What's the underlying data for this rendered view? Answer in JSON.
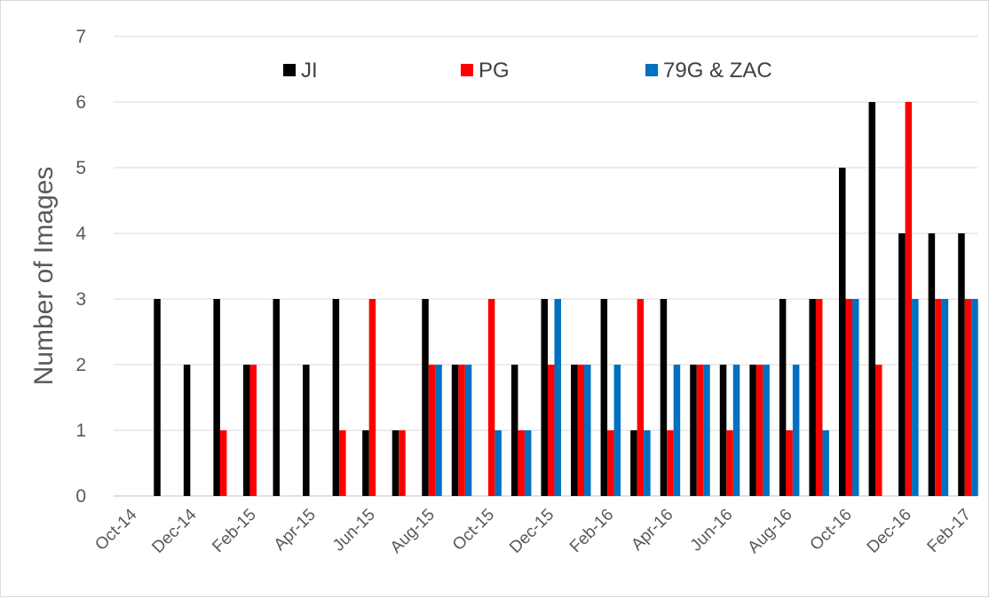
{
  "chart_data": {
    "type": "bar",
    "title": "",
    "xlabel": "",
    "ylabel": "Number of Images",
    "ylim": [
      0,
      7
    ],
    "yticks": [
      0,
      1,
      2,
      3,
      4,
      5,
      6,
      7
    ],
    "grid": true,
    "legend_position": "top",
    "categories": [
      "Oct-14",
      "Nov-14",
      "Dec-14",
      "Jan-15",
      "Feb-15",
      "Mar-15",
      "Apr-15",
      "May-15",
      "Jun-15",
      "Jul-15",
      "Aug-15",
      "Sep-15",
      "Oct-15",
      "Nov-15",
      "Dec-15",
      "Jan-16",
      "Feb-16",
      "Mar-16",
      "Apr-16",
      "May-16",
      "Jun-16",
      "Jul-16",
      "Aug-16",
      "Sep-16",
      "Oct-16",
      "Nov-16",
      "Dec-16",
      "Jan-17",
      "Feb-17"
    ],
    "x_tick_labels": [
      "Oct-14",
      "Dec-14",
      "Feb-15",
      "Apr-15",
      "Jun-15",
      "Aug-15",
      "Oct-15",
      "Dec-15",
      "Feb-16",
      "Apr-16",
      "Jun-16",
      "Aug-16",
      "Oct-16",
      "Dec-16",
      "Feb-17"
    ],
    "series": [
      {
        "name": "JI",
        "color": "#000000",
        "values": [
          0,
          3,
          2,
          3,
          2,
          3,
          2,
          3,
          1,
          1,
          3,
          2,
          0,
          2,
          3,
          2,
          3,
          1,
          3,
          2,
          2,
          2,
          3,
          3,
          5,
          6,
          4,
          4,
          4
        ]
      },
      {
        "name": "PG",
        "color": "#ff0000",
        "values": [
          0,
          0,
          0,
          1,
          2,
          0,
          0,
          1,
          3,
          1,
          2,
          2,
          3,
          1,
          2,
          2,
          1,
          3,
          1,
          2,
          1,
          2,
          1,
          3,
          3,
          2,
          6,
          3,
          3
        ]
      },
      {
        "name": "79G & ZAC",
        "color": "#0070c0",
        "values": [
          0,
          0,
          0,
          0,
          0,
          0,
          0,
          0,
          0,
          0,
          2,
          2,
          1,
          1,
          3,
          2,
          2,
          1,
          2,
          2,
          2,
          2,
          2,
          1,
          3,
          0,
          3,
          3,
          3
        ]
      }
    ]
  }
}
